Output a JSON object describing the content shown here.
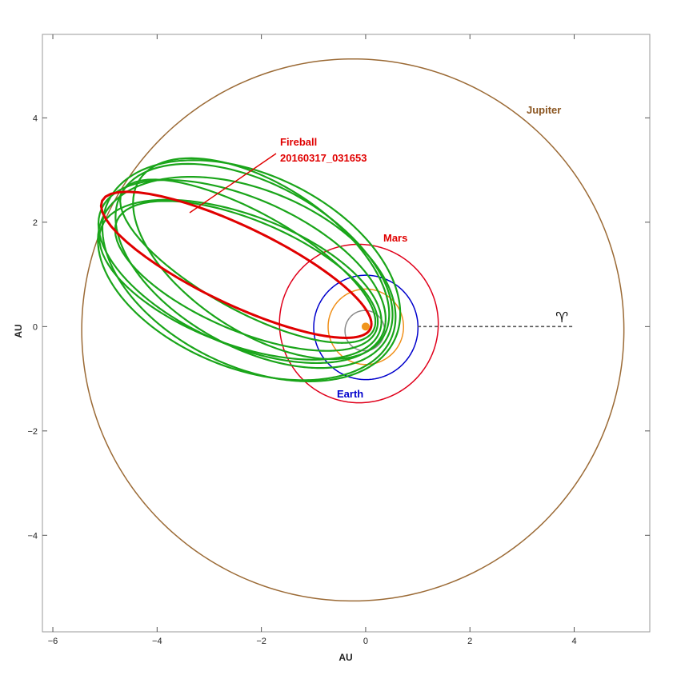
{
  "chart_data": {
    "type": "line",
    "title": "",
    "xlabel": "AU",
    "ylabel": "AU",
    "xlim": [
      -6.2,
      5.45
    ],
    "ylim": [
      -5.85,
      5.6
    ],
    "xticks": [
      -6,
      -4,
      -2,
      0,
      2,
      4
    ],
    "yticks": [
      -4,
      -2,
      0,
      2,
      4
    ],
    "xtick_labels": [
      "−6",
      "−4",
      "−2",
      "0",
      "2",
      "4"
    ],
    "ytick_labels": [
      "−4",
      "−2",
      "0",
      "2",
      "4"
    ],
    "grid": false,
    "sun": {
      "x": 0,
      "y": 0,
      "color": "#f0961e"
    },
    "planet_orbits": [
      {
        "name": "",
        "a": 0.387,
        "e": 0.2056,
        "peri_deg": 77.5,
        "color": "#8a8a8a"
      },
      {
        "name": "",
        "a": 0.723,
        "e": 0.0068,
        "peri_deg": 131.5,
        "color": "#f0901a"
      },
      {
        "name": "Earth",
        "a": 1.0,
        "e": 0.0167,
        "peri_deg": 102.9,
        "color": "#0000cc"
      },
      {
        "name": "Mars",
        "a": 1.524,
        "e": 0.0934,
        "peri_deg": 336.0,
        "color": "#e0001b"
      },
      {
        "name": "Jupiter",
        "a": 5.2,
        "e": 0.0489,
        "peri_deg": 14.7,
        "color": "#9b6a35"
      }
    ],
    "fireball_orbit": {
      "name": "Fireball\n20160317_031653",
      "a": 2.85,
      "e": 0.965,
      "peri_deg": -25.5,
      "color": "#e00000"
    },
    "clone_orbits": {
      "color": "#1aa51a",
      "orbits": [
        {
          "a": 2.75,
          "e": 0.94,
          "peri_deg": -29.0
        },
        {
          "a": 2.95,
          "e": 0.88,
          "peri_deg": -24.0
        },
        {
          "a": 2.9,
          "e": 0.84,
          "peri_deg": -28.5
        },
        {
          "a": 3.0,
          "e": 0.82,
          "peri_deg": -22.0
        },
        {
          "a": 2.85,
          "e": 0.9,
          "peri_deg": -20.5
        },
        {
          "a": 2.78,
          "e": 0.86,
          "peri_deg": -33.0
        },
        {
          "a": 3.05,
          "e": 0.8,
          "peri_deg": -26.0
        },
        {
          "a": 2.7,
          "e": 0.92,
          "peri_deg": -23.0
        }
      ]
    },
    "vernal_equinox": {
      "symbol": "♈",
      "x_start": 1.0,
      "x_end": 4.0,
      "y": 0
    },
    "annotations": [
      {
        "text": "Fireball",
        "color": "#e00000"
      },
      {
        "text": "20160317_031653",
        "color": "#e00000"
      },
      {
        "text": "Mars",
        "color": "#e00000"
      },
      {
        "text": "Earth",
        "color": "#0000cc"
      },
      {
        "text": "Jupiter",
        "color": "#8a5520"
      }
    ]
  }
}
